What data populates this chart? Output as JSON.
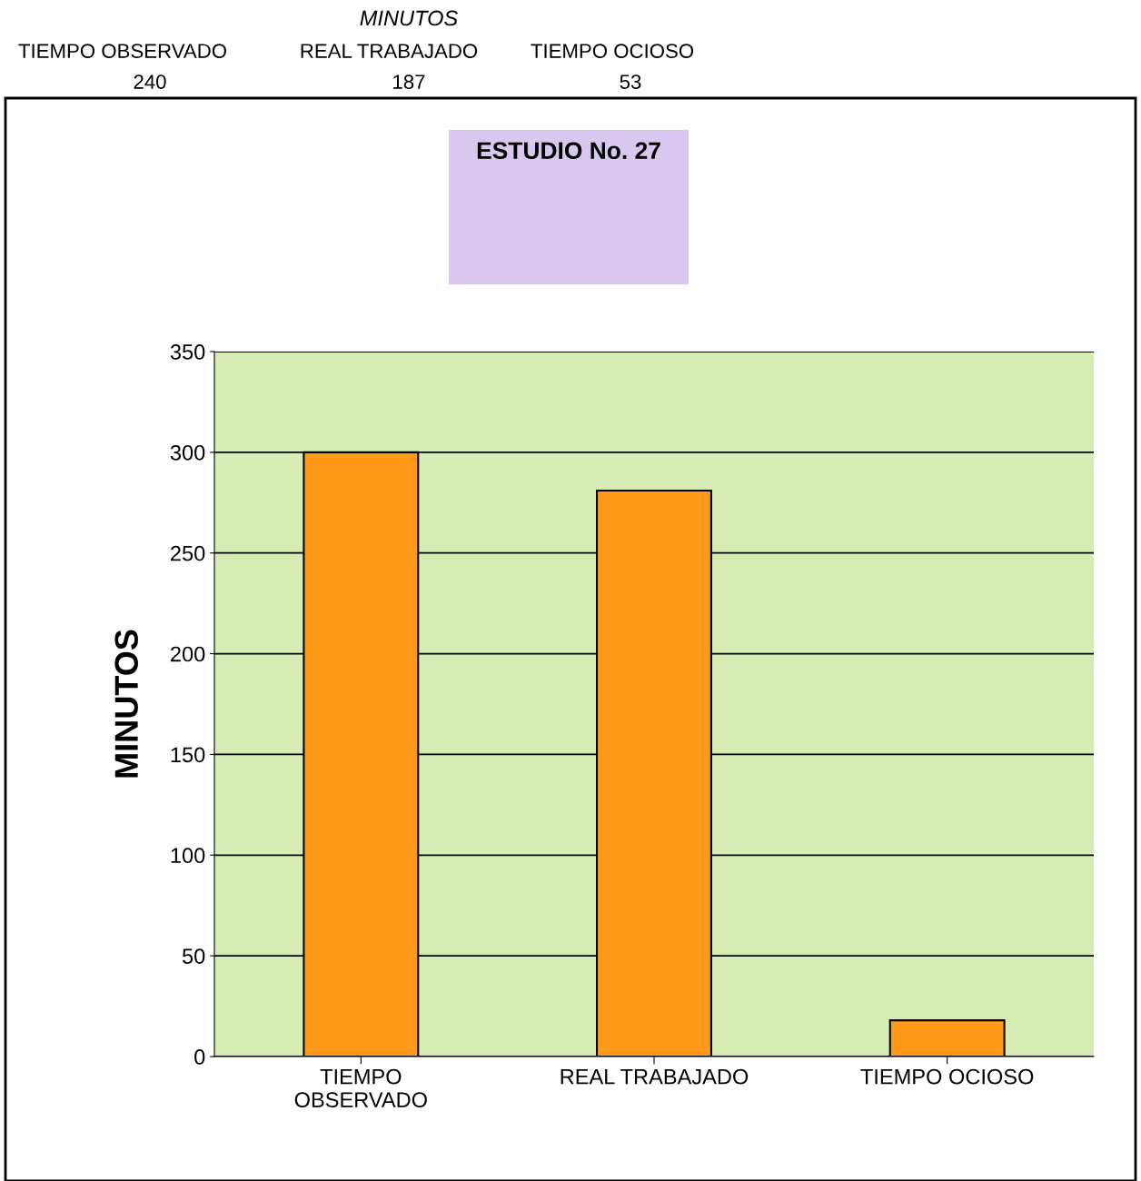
{
  "chart_data": {
    "type": "bar",
    "title": "ESTUDIO No. 27",
    "ylabel": "MINUTOS",
    "categories": [
      "TIEMPO\nOBSERVADO",
      "REAL TRABAJADO",
      "TIEMPO OCIOSO"
    ],
    "values": [
      300,
      281,
      18
    ],
    "color": "#ff9a1a",
    "ylim": [
      0,
      350
    ],
    "yticks": [
      0,
      50,
      100,
      150,
      200,
      250,
      300,
      350
    ],
    "grid": "y",
    "annotations": [
      "MINUTOS",
      "TIEMPO OBSERVADO",
      "REAL TRABAJADO",
      "TIEMPO OCIOSO",
      "240",
      "187",
      "53"
    ]
  }
}
